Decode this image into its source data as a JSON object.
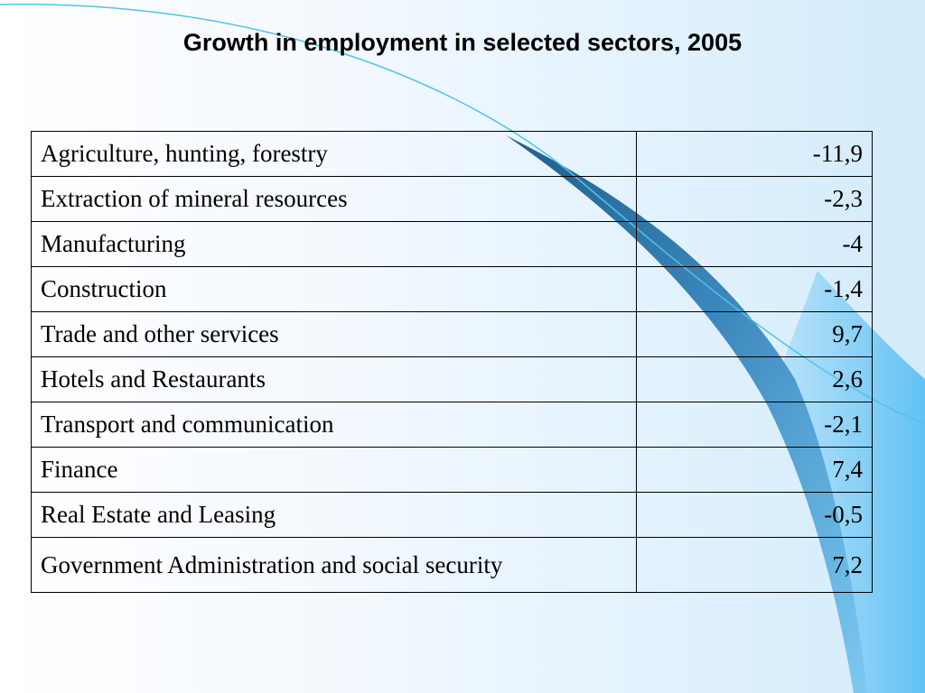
{
  "title": "Growth in employment in selected sectors, 2005",
  "colors": {
    "background_light": "#f4f9fe",
    "background_blue": "#66c6f5",
    "swoosh_dark": "#2e6c95",
    "table_border": "#000000",
    "text": "#000000"
  },
  "table": {
    "rows": [
      {
        "sector": "Agriculture, hunting, forestry",
        "value": "-11,9"
      },
      {
        "sector": "Extraction of mineral resources",
        "value": "-2,3"
      },
      {
        "sector": "Manufacturing",
        "value": "-4"
      },
      {
        "sector": "Construction",
        "value": "-1,4"
      },
      {
        "sector": "Trade and other services",
        "value": "9,7"
      },
      {
        "sector": "Hotels and Restaurants",
        "value": "2,6"
      },
      {
        "sector": "Transport and communication",
        "value": "-2,1"
      },
      {
        "sector": "Finance",
        "value": "7,4"
      },
      {
        "sector": "Real Estate and Leasing",
        "value": "-0,5"
      },
      {
        "sector": "Government Administration and social security",
        "value": "7,2"
      }
    ]
  }
}
